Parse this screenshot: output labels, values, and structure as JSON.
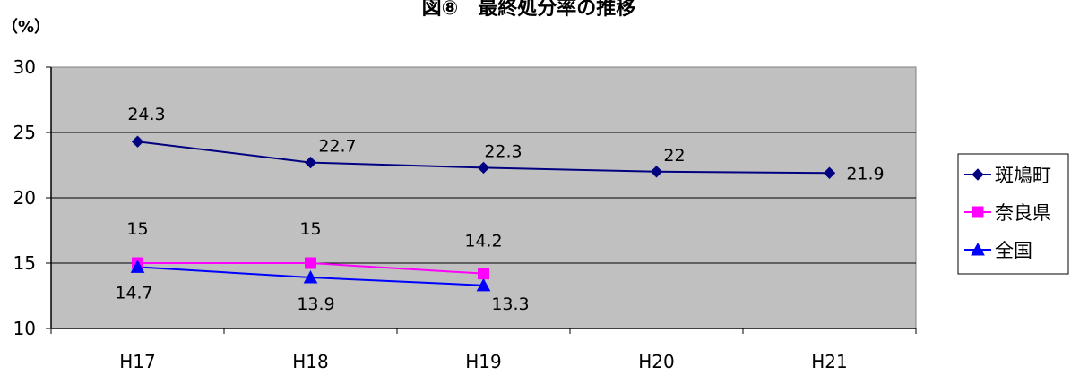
{
  "chart_data": {
    "type": "line",
    "title": "図⑧　最終処分率の推移",
    "unit_label": "（%）",
    "categories": [
      "H17",
      "H18",
      "H19",
      "H20",
      "H21"
    ],
    "ylim": [
      10,
      30
    ],
    "yticks": [
      10,
      15,
      20,
      25,
      30
    ],
    "grid": true,
    "legend_position": "right",
    "series": [
      {
        "name": "斑鳩町",
        "values": [
          24.3,
          22.7,
          22.3,
          22,
          21.9
        ],
        "color": "#000080",
        "marker": "diamond"
      },
      {
        "name": "奈良県",
        "values": [
          15,
          15,
          14.2,
          null,
          null
        ],
        "color": "#ff00ff",
        "marker": "square"
      },
      {
        "name": "全国",
        "values": [
          14.7,
          13.9,
          13.3,
          null,
          null
        ],
        "color": "#0000ff",
        "marker": "triangle"
      }
    ],
    "colors": {
      "plot_background": "#c0c0c0"
    }
  }
}
